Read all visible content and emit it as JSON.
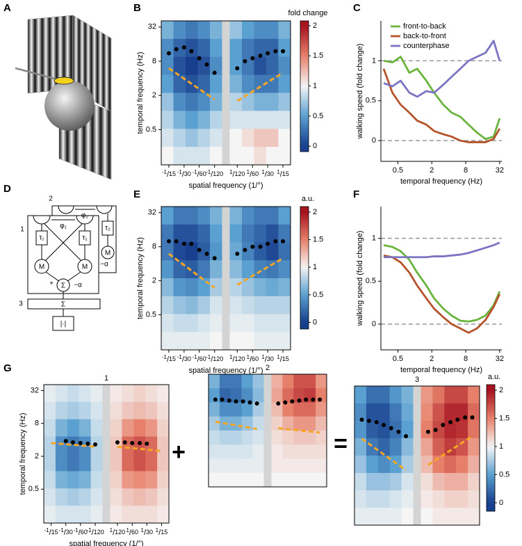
{
  "panel_labels": [
    "A",
    "B",
    "C",
    "D",
    "E",
    "F",
    "G"
  ],
  "symbols": [
    "+",
    "="
  ],
  "diagram_D": {
    "texts": [
      "1",
      "2",
      "3",
      "φ₁",
      "φ₂",
      "τ₁",
      "τ₁",
      "τ₂",
      "M",
      "M",
      "M",
      "Σ",
      "Σ",
      "+",
      "−α",
      "−α",
      "|·|"
    ]
  },
  "chart_data": [
    {
      "type": "heatmap",
      "xlabel": "spatial frequency (1/°)",
      "ylabel": "temporal frequency (Hz)",
      "ylog": true,
      "ylim": [
        0.12,
        41
      ],
      "yticks": [
        0.5,
        2,
        8,
        32
      ],
      "xticks": [
        {
          "value": -0.0667,
          "label": "-1/15"
        },
        {
          "value": -0.0333,
          "label": "-1/30"
        },
        {
          "value": -0.0167,
          "label": "-1/60"
        },
        {
          "value": -0.0083,
          "label": "-1/120"
        },
        {
          "value": 0.0083,
          "label": "1/120"
        },
        {
          "value": 0.0167,
          "label": "1/60"
        },
        {
          "value": 0.0333,
          "label": "1/30"
        },
        {
          "value": 0.0667,
          "label": "1/15"
        }
      ],
      "colormap": [
        "#183f8e",
        "#5aa0d0",
        "#f5f5f5",
        "#e7806a",
        "#a5121f"
      ],
      "clim": [
        0,
        2
      ],
      "colorbar": {
        "label": "fold change",
        "lim": [
          -0.09,
          2.08
        ],
        "ticks": [
          0,
          0.5,
          1,
          1.5,
          2
        ]
      },
      "z": [
        [
          0.6,
          0.4,
          0.3,
          0.4,
          0.6,
          0.7,
          0.5,
          0.4,
          0.4,
          0.6
        ],
        [
          0.4,
          0.2,
          0.1,
          0.2,
          0.5,
          0.5,
          0.3,
          0.2,
          0.2,
          0.5
        ],
        [
          0.4,
          0.1,
          0.0,
          0.1,
          0.4,
          0.5,
          0.3,
          0.1,
          0.2,
          0.4
        ],
        [
          0.5,
          0.2,
          0.1,
          0.2,
          0.5,
          0.6,
          0.4,
          0.3,
          0.3,
          0.5
        ],
        [
          0.7,
          0.4,
          0.3,
          0.4,
          0.6,
          0.8,
          0.7,
          0.6,
          0.6,
          0.7
        ],
        [
          0.8,
          0.6,
          0.5,
          0.6,
          0.8,
          0.9,
          0.9,
          0.9,
          0.9,
          0.9
        ],
        [
          0.9,
          0.8,
          0.7,
          0.8,
          0.9,
          1.0,
          1.1,
          1.2,
          1.2,
          1.0
        ],
        [
          1.0,
          0.9,
          0.9,
          0.9,
          1.0,
          1.0,
          1.0,
          1.1,
          1.0,
          1.0
        ]
      ],
      "peaks": {
        "x": [
          -0.0667,
          -0.0476,
          -0.0333,
          -0.0238,
          -0.0167,
          -0.0118,
          -0.0083,
          0.0083,
          0.0118,
          0.0167,
          0.0238,
          0.0333,
          0.0476,
          0.0667
        ],
        "y": [
          11,
          13,
          14,
          12,
          9,
          7,
          5,
          6,
          8,
          9,
          10,
          11,
          12,
          12
        ]
      },
      "fits": [
        {
          "x": [
            -0.0667,
            -0.0083
          ],
          "y": [
            6,
            1.7
          ]
        },
        {
          "x": [
            0.0083,
            0.0667
          ],
          "y": [
            1.6,
            5
          ]
        }
      ],
      "fit_color": "#f5a623",
      "peak_color": "#000000"
    },
    {
      "type": "line",
      "xlabel": "temporal frequency (Hz)",
      "ylabel": "walking speed (fold change)",
      "xlog": true,
      "xlim": [
        0.25,
        35
      ],
      "xticks": [
        0.5,
        2,
        8,
        32
      ],
      "ylim": [
        -0.26,
        1.5
      ],
      "yticks": [
        0,
        0.5,
        1
      ],
      "ref_lines": [
        0,
        1
      ],
      "legend": "upper left",
      "x": [
        0.28,
        0.4,
        0.56,
        0.8,
        1.1,
        1.6,
        2.2,
        3.2,
        4.5,
        6.4,
        9,
        12.7,
        18,
        25,
        32
      ],
      "series": [
        {
          "name": "front-to-back",
          "color": "#6ab43e",
          "values": [
            1.0,
            0.98,
            1.05,
            0.85,
            0.9,
            0.75,
            0.6,
            0.45,
            0.35,
            0.3,
            0.2,
            0.1,
            0.02,
            0.05,
            0.28
          ]
        },
        {
          "name": "back-to-front",
          "color": "#b5532a",
          "values": [
            0.9,
            0.6,
            0.45,
            0.35,
            0.25,
            0.2,
            0.12,
            0.08,
            0.05,
            0.0,
            -0.02,
            -0.02,
            -0.02,
            0.02,
            0.15
          ]
        },
        {
          "name": "counterphase",
          "color": "#7b74c2",
          "values": [
            0.72,
            0.68,
            0.75,
            0.6,
            0.55,
            0.62,
            0.6,
            0.7,
            0.8,
            0.9,
            1.0,
            1.05,
            1.1,
            1.25,
            1.0
          ]
        }
      ]
    },
    {
      "type": "heatmap",
      "xlabel": "spatial frequency (1/°)",
      "ylabel": "temporal frequency (Hz)",
      "ylog": true,
      "ylim": [
        0.12,
        41
      ],
      "yticks": [
        0.5,
        2,
        8,
        32
      ],
      "xticks": [
        {
          "value": -0.0667,
          "label": "-1/15"
        },
        {
          "value": -0.0333,
          "label": "-1/30"
        },
        {
          "value": -0.0167,
          "label": "-1/60"
        },
        {
          "value": -0.0083,
          "label": "-1/120"
        },
        {
          "value": 0.0083,
          "label": "1/120"
        },
        {
          "value": 0.0167,
          "label": "1/60"
        },
        {
          "value": 0.0333,
          "label": "1/30"
        },
        {
          "value": 0.0667,
          "label": "1/15"
        }
      ],
      "colormap": [
        "#183f8e",
        "#5aa0d0",
        "#f5f5f5",
        "#e7806a",
        "#a5121f"
      ],
      "clim": [
        0,
        2
      ],
      "colorbar": {
        "label": "a.u.",
        "lim": [
          -0.12,
          2.1
        ],
        "ticks": [
          0,
          0.5,
          1,
          1.5,
          2
        ]
      },
      "z": [
        [
          0.5,
          0.3,
          0.3,
          0.4,
          0.6,
          0.6,
          0.4,
          0.3,
          0.3,
          0.5
        ],
        [
          0.3,
          0.1,
          0.1,
          0.2,
          0.5,
          0.5,
          0.3,
          0.2,
          0.1,
          0.3
        ],
        [
          0.3,
          0.05,
          0.0,
          0.15,
          0.45,
          0.55,
          0.35,
          0.15,
          0.05,
          0.25
        ],
        [
          0.45,
          0.2,
          0.15,
          0.3,
          0.6,
          0.65,
          0.5,
          0.35,
          0.3,
          0.4
        ],
        [
          0.65,
          0.45,
          0.4,
          0.5,
          0.75,
          0.8,
          0.7,
          0.6,
          0.55,
          0.6
        ],
        [
          0.8,
          0.7,
          0.65,
          0.75,
          0.9,
          0.9,
          0.85,
          0.8,
          0.8,
          0.8
        ],
        [
          0.9,
          0.85,
          0.85,
          0.9,
          0.95,
          0.95,
          0.95,
          0.9,
          0.9,
          0.9
        ],
        [
          0.95,
          0.95,
          0.95,
          0.95,
          1.0,
          1.0,
          1.0,
          0.95,
          0.95,
          0.95
        ]
      ],
      "peaks": {
        "x": [
          -0.0667,
          -0.0476,
          -0.0333,
          -0.0238,
          -0.0167,
          -0.0118,
          -0.0083,
          0.0083,
          0.0118,
          0.0167,
          0.0238,
          0.0333,
          0.0476,
          0.0667
        ],
        "y": [
          10,
          10,
          9,
          9,
          7,
          6,
          5,
          6,
          7,
          8,
          8,
          9,
          10,
          10
        ]
      },
      "fits": [
        {
          "x": [
            -0.0667,
            -0.0083
          ],
          "y": [
            6,
            1.5
          ]
        },
        {
          "x": [
            0.0083,
            0.0667
          ],
          "y": [
            1.7,
            5
          ]
        }
      ],
      "fit_color": "#f5a623",
      "peak_color": "#000000"
    },
    {
      "type": "line",
      "xlabel": "temporal frequency (Hz)",
      "ylabel": "walking speed (fold change)",
      "xlog": true,
      "xlim": [
        0.25,
        35
      ],
      "xticks": [
        0.5,
        2,
        8,
        32
      ],
      "ylim": [
        -0.3,
        1.37
      ],
      "yticks": [
        0,
        0.5,
        1
      ],
      "ref_lines": [
        0,
        1
      ],
      "x": [
        0.28,
        0.4,
        0.56,
        0.8,
        1.1,
        1.6,
        2.2,
        3.2,
        4.5,
        6.4,
        9,
        12.7,
        18,
        25,
        32
      ],
      "series": [
        {
          "color": "#6ab43e",
          "values": [
            0.92,
            0.9,
            0.85,
            0.75,
            0.6,
            0.45,
            0.3,
            0.18,
            0.1,
            0.04,
            0.03,
            0.05,
            0.1,
            0.22,
            0.38
          ]
        },
        {
          "color": "#b5532a",
          "values": [
            0.8,
            0.78,
            0.72,
            0.6,
            0.45,
            0.3,
            0.18,
            0.08,
            0.0,
            -0.05,
            -0.1,
            -0.05,
            0.05,
            0.2,
            0.35
          ]
        },
        {
          "color": "#7b74c2",
          "values": [
            0.78,
            0.78,
            0.78,
            0.78,
            0.78,
            0.78,
            0.79,
            0.79,
            0.8,
            0.81,
            0.83,
            0.86,
            0.89,
            0.92,
            0.95
          ]
        }
      ]
    },
    {
      "type": "heatmap",
      "title": "1",
      "xlabel": "spatial frequency (1/°)",
      "ylabel": "temporal frequency (Hz)",
      "ylog": true,
      "ylim": [
        0.12,
        41
      ],
      "yticks": [
        0.5,
        2,
        8,
        32
      ],
      "xticks": [
        {
          "value": -0.0667,
          "label": "-1/15"
        },
        {
          "value": -0.0333,
          "label": "-1/30"
        },
        {
          "value": -0.0167,
          "label": "-1/60"
        },
        {
          "value": -0.0083,
          "label": "-1/120"
        },
        {
          "value": 0.0083,
          "label": "1/120"
        },
        {
          "value": 0.0167,
          "label": "1/60"
        },
        {
          "value": 0.0333,
          "label": "1/30"
        },
        {
          "value": 0.0667,
          "label": "1/15"
        }
      ],
      "colormap": [
        "#183f8e",
        "#5aa0d0",
        "#f5f5f5",
        "#e7806a",
        "#a5121f"
      ],
      "clim": [
        0,
        2
      ],
      "z": [
        [
          0.95,
          0.9,
          0.85,
          0.9,
          0.95,
          1.05,
          1.1,
          1.15,
          1.1,
          1.05
        ],
        [
          0.9,
          0.8,
          0.75,
          0.8,
          0.9,
          1.1,
          1.2,
          1.25,
          1.2,
          1.1
        ],
        [
          0.85,
          0.6,
          0.5,
          0.6,
          0.85,
          1.15,
          1.4,
          1.5,
          1.4,
          1.15
        ],
        [
          0.8,
          0.4,
          0.3,
          0.4,
          0.8,
          1.2,
          1.6,
          1.7,
          1.6,
          1.2
        ],
        [
          0.8,
          0.4,
          0.3,
          0.4,
          0.8,
          1.2,
          1.6,
          1.7,
          1.6,
          1.2
        ],
        [
          0.85,
          0.6,
          0.55,
          0.6,
          0.85,
          1.15,
          1.4,
          1.45,
          1.4,
          1.15
        ],
        [
          0.9,
          0.8,
          0.75,
          0.8,
          0.9,
          1.1,
          1.2,
          1.25,
          1.2,
          1.1
        ],
        [
          0.95,
          0.9,
          0.9,
          0.9,
          0.95,
          1.05,
          1.1,
          1.1,
          1.1,
          1.05
        ]
      ],
      "peaks": {
        "x": [
          -0.0333,
          -0.0238,
          -0.0167,
          -0.0118,
          -0.0083,
          0.0083,
          0.0118,
          0.0167,
          0.0238,
          0.0333
        ],
        "y": [
          3.8,
          3.6,
          3.5,
          3.4,
          3.3,
          3.6,
          3.6,
          3.5,
          3.5,
          3.4
        ]
      },
      "fits": [
        {
          "x": [
            -0.0667,
            -0.0083
          ],
          "y": [
            3.5,
            3.0
          ]
        },
        {
          "x": [
            0.0083,
            0.0667
          ],
          "y": [
            3.0,
            2.5
          ]
        }
      ],
      "fit_color": "#f5a623",
      "peak_color": "#000000"
    },
    {
      "type": "heatmap",
      "title": "2",
      "ylog": true,
      "ylim": [
        0.12,
        41
      ],
      "colormap": [
        "#183f8e",
        "#5aa0d0",
        "#f5f5f5",
        "#e7806a",
        "#a5121f"
      ],
      "clim": [
        0,
        2
      ],
      "z": [
        [
          0.6,
          0.3,
          0.3,
          0.5,
          0.7,
          1.3,
          1.5,
          1.7,
          1.7,
          1.4
        ],
        [
          0.5,
          0.2,
          0.25,
          0.4,
          0.65,
          1.35,
          1.6,
          1.75,
          1.8,
          1.5
        ],
        [
          0.6,
          0.4,
          0.4,
          0.5,
          0.75,
          1.25,
          1.5,
          1.6,
          1.6,
          1.4
        ],
        [
          0.75,
          0.6,
          0.6,
          0.7,
          0.85,
          1.15,
          1.3,
          1.4,
          1.4,
          1.25
        ],
        [
          0.85,
          0.8,
          0.8,
          0.85,
          0.9,
          1.1,
          1.15,
          1.2,
          1.2,
          1.15
        ],
        [
          0.9,
          0.9,
          0.9,
          0.9,
          0.95,
          1.05,
          1.1,
          1.1,
          1.1,
          1.1
        ],
        [
          0.95,
          0.95,
          0.95,
          0.95,
          0.95,
          1.05,
          1.05,
          1.05,
          1.05,
          1.05
        ],
        [
          1,
          1,
          1,
          1,
          1,
          1,
          1,
          1,
          1,
          1
        ]
      ],
      "peaks": {
        "x": [
          -0.0667,
          -0.0476,
          -0.0333,
          -0.0238,
          -0.0167,
          -0.0118,
          -0.0083,
          0.0083,
          0.0118,
          0.0167,
          0.0238,
          0.0333,
          0.0476,
          0.0667
        ],
        "y": [
          11,
          11,
          10.5,
          10,
          10,
          9.5,
          9,
          9,
          9.5,
          10,
          10.5,
          11,
          11,
          11
        ]
      },
      "fits": [
        {
          "x": [
            -0.0667,
            -0.0083
          ],
          "y": [
            3.5,
            2.4
          ]
        },
        {
          "x": [
            0.0083,
            0.0667
          ],
          "y": [
            2.5,
            2.0
          ]
        }
      ],
      "fit_color": "#f5a623",
      "peak_color": "#000000"
    },
    {
      "type": "heatmap",
      "title": "3",
      "ylog": true,
      "ylim": [
        0.12,
        41
      ],
      "colormap": [
        "#183f8e",
        "#5aa0d0",
        "#f5f5f5",
        "#e7806a",
        "#a5121f"
      ],
      "clim": [
        0,
        2
      ],
      "colorbar": {
        "label": "a.u.",
        "lim": [
          -0.15,
          2.1
        ],
        "ticks": [
          0,
          0.5,
          1,
          1.5,
          2
        ]
      },
      "z": [
        [
          0.5,
          0.25,
          0.25,
          0.45,
          0.6,
          1.4,
          1.55,
          1.75,
          1.75,
          1.5
        ],
        [
          0.4,
          0.1,
          0.1,
          0.3,
          0.55,
          1.45,
          1.7,
          1.9,
          1.9,
          1.6
        ],
        [
          0.45,
          0.15,
          0.1,
          0.25,
          0.5,
          1.5,
          1.75,
          1.9,
          1.85,
          1.55
        ],
        [
          0.6,
          0.3,
          0.2,
          0.35,
          0.65,
          1.35,
          1.65,
          1.8,
          1.7,
          1.4
        ],
        [
          0.7,
          0.5,
          0.4,
          0.5,
          0.75,
          1.25,
          1.5,
          1.6,
          1.5,
          1.3
        ],
        [
          0.85,
          0.7,
          0.7,
          0.75,
          0.9,
          1.1,
          1.25,
          1.3,
          1.3,
          1.15
        ],
        [
          0.9,
          0.85,
          0.85,
          0.9,
          0.95,
          1.05,
          1.1,
          1.15,
          1.15,
          1.1
        ],
        [
          0.95,
          0.95,
          0.95,
          0.95,
          1.0,
          1.0,
          1.05,
          1.05,
          1.05,
          1.05
        ]
      ],
      "peaks": {
        "x": [
          -0.0667,
          -0.0476,
          -0.0333,
          -0.0238,
          -0.0167,
          -0.0118,
          -0.0083,
          0.0083,
          0.0118,
          0.0167,
          0.0238,
          0.0333,
          0.0476,
          0.0667
        ],
        "y": [
          10,
          9.5,
          9,
          8,
          7,
          6,
          5,
          6,
          6.5,
          8,
          9,
          10,
          11,
          11
        ]
      },
      "fits": [
        {
          "x": [
            -0.0667,
            -0.0083
          ],
          "y": [
            4.5,
            1.2
          ]
        },
        {
          "x": [
            0.0083,
            0.0667
          ],
          "y": [
            1.5,
            5
          ]
        }
      ],
      "fit_color": "#f5a623",
      "peak_color": "#000000"
    }
  ]
}
